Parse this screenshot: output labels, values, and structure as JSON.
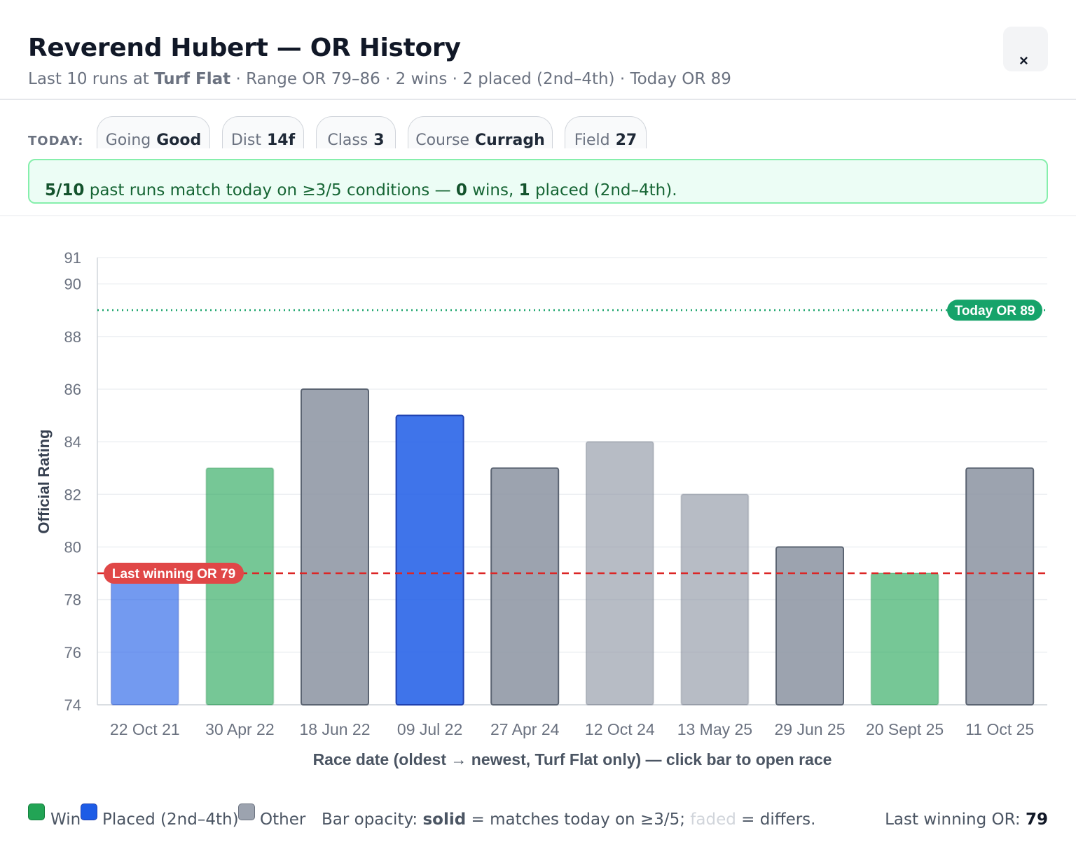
{
  "header": {
    "title": "Reverend Hubert — OR History",
    "subtitle_prefix": "Last 10 runs at ",
    "subtitle_surface": "Turf Flat",
    "subtitle_rest": " · Range OR 79–86 · 2 wins · 2 placed (2nd–4th) · Today OR 89",
    "close_label": "×"
  },
  "today": {
    "label": "TODAY:",
    "chips": [
      {
        "key": "Going",
        "value": "Good"
      },
      {
        "key": "Dist",
        "value": "14f"
      },
      {
        "key": "Class",
        "value": "3"
      },
      {
        "key": "Course",
        "value": "Curragh"
      },
      {
        "key": "Field",
        "value": "27"
      }
    ]
  },
  "match": {
    "ratio": "5/10",
    "text1": " past runs match today on ≥3/5 conditions — ",
    "wins": "0",
    "text2": " wins, ",
    "placed": "1",
    "text3": " placed (2nd–4th)."
  },
  "chart_data": {
    "type": "bar",
    "xlabel": "Race date (oldest → newest, Turf Flat only) — click bar to open race",
    "ylabel": "Official Rating",
    "ylim": [
      74,
      91
    ],
    "yticks": [
      74,
      76,
      78,
      80,
      82,
      84,
      86,
      88,
      90,
      91
    ],
    "grid": true,
    "categories": [
      "22 Oct 21",
      "30 Apr 22",
      "18 Jun 22",
      "09 Jul 22",
      "27 Apr 24",
      "12 Oct 24",
      "13 May 25",
      "29 Jun 25",
      "20 Sept 25",
      "11 Oct 25"
    ],
    "values": [
      79,
      83,
      86,
      85,
      83,
      84,
      82,
      80,
      79,
      83
    ],
    "result": [
      "placed",
      "win",
      "other",
      "placed",
      "other",
      "other",
      "other",
      "other",
      "win",
      "other"
    ],
    "matches_today": [
      false,
      false,
      true,
      true,
      true,
      false,
      false,
      true,
      false,
      true
    ],
    "reference_lines": [
      {
        "label": "Today OR 89",
        "value": 89,
        "color": "#16a36a",
        "style": "dotted"
      },
      {
        "label": "Last winning OR 79",
        "value": 79,
        "color": "#dc2626",
        "style": "dashed"
      }
    ],
    "colors": {
      "win": "#22a455",
      "placed": "#1d5ce6",
      "other": "#8b93a1"
    }
  },
  "legend": {
    "win": "Win",
    "placed": "Placed (2nd–4th)",
    "other": "Other",
    "note_prefix": "Bar opacity: ",
    "note_solid": "solid",
    "note_mid": " = matches today on ≥3/5; ",
    "note_faded": "faded",
    "note_end": " = differs.",
    "last_win_label": "Last winning OR: ",
    "last_win_value": "79"
  }
}
